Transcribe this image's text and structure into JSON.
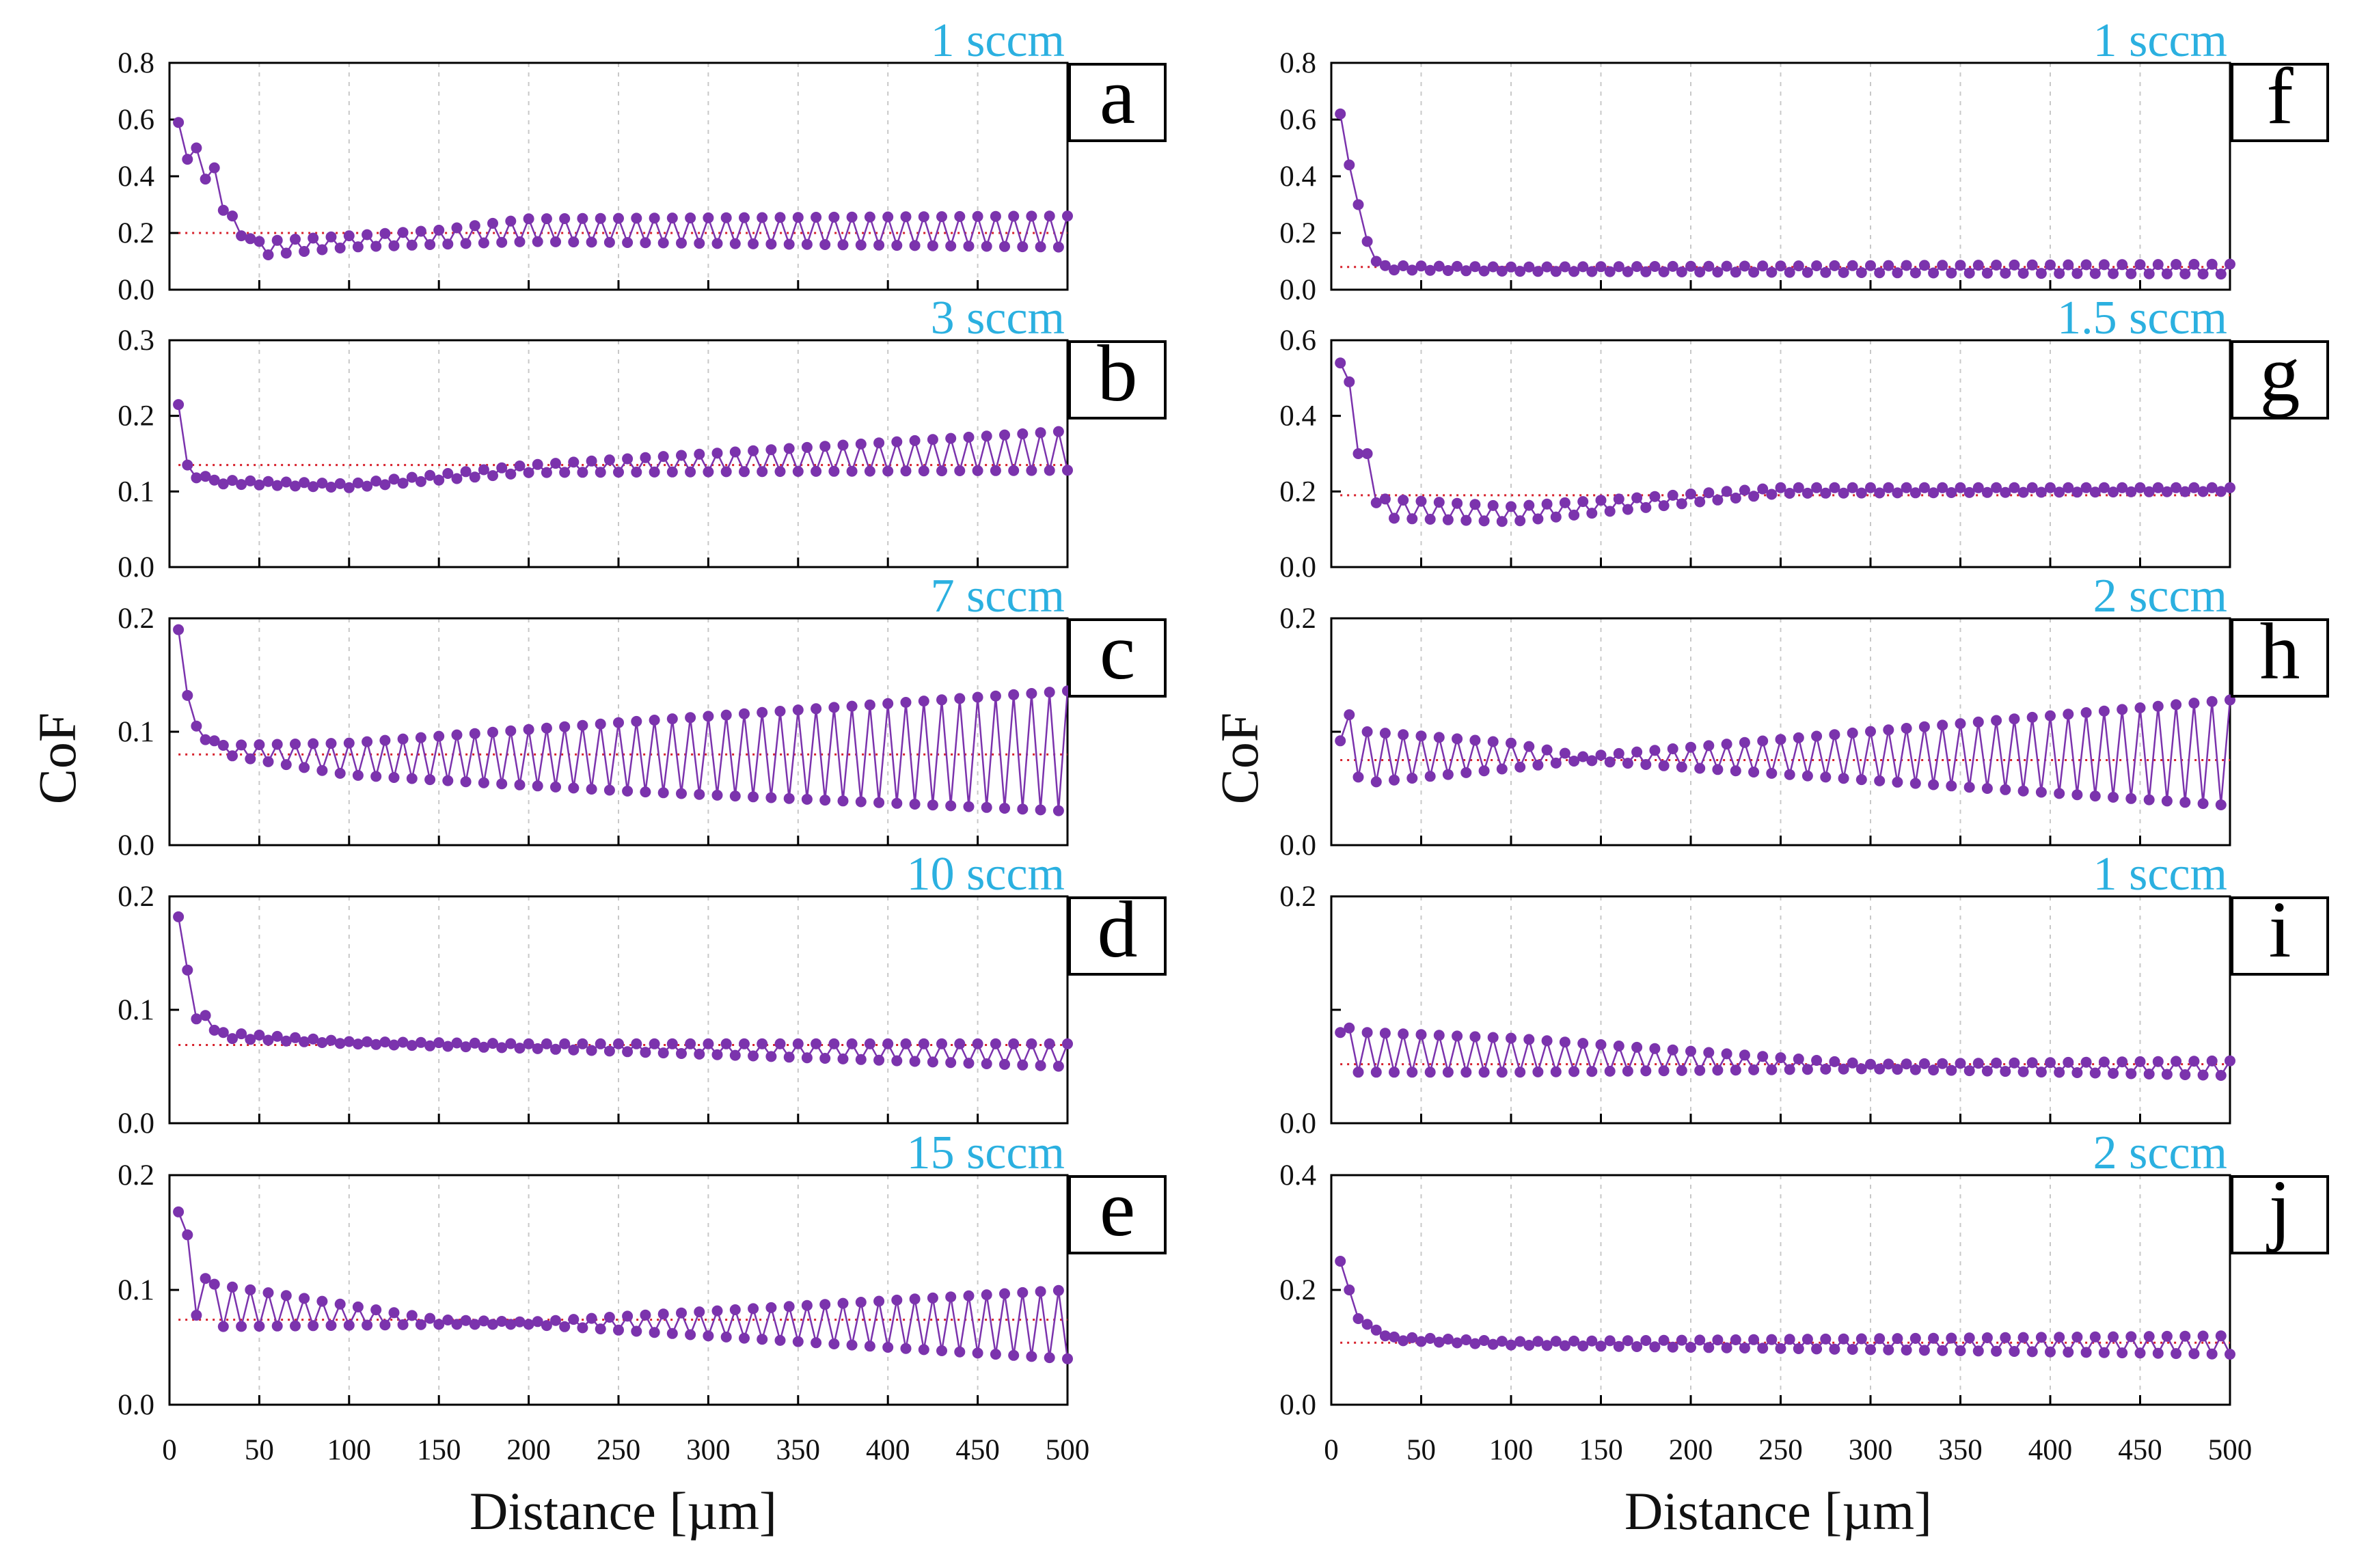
{
  "colors": {
    "series": "#7b33ad",
    "mean_line": "#d61f2a",
    "condition_label": "#2bb0e0",
    "grid": "#c8c8c8"
  },
  "shared": {
    "xlabel": "Distance [µm]",
    "ylabel": "CoF",
    "x_ticks": [
      "0",
      "50",
      "100",
      "150",
      "200",
      "250",
      "300",
      "350",
      "400",
      "450",
      "500"
    ]
  },
  "chart_data": [
    {
      "panel": "a",
      "condition": "1 sccm",
      "type": "line",
      "xlim": [
        0,
        500
      ],
      "ylim": [
        0,
        0.8
      ],
      "y_ticks": [
        "0.0",
        "0.2",
        "0.4",
        "0.6",
        "0.8"
      ],
      "mean": 0.2,
      "x": [
        5,
        10,
        15,
        20,
        25,
        30,
        35,
        40,
        45
      ],
      "y_start": [
        0.59,
        0.46,
        0.5,
        0.39,
        0.43,
        0.28,
        0.26,
        0.19,
        0.18
      ],
      "upper": [
        [
          50,
          0.17
        ],
        [
          150,
          0.21
        ],
        [
          200,
          0.25
        ],
        [
          500,
          0.26
        ]
      ],
      "lower": [
        [
          50,
          0.12
        ],
        [
          100,
          0.15
        ],
        [
          200,
          0.17
        ],
        [
          500,
          0.15
        ]
      ]
    },
    {
      "panel": "b",
      "condition": "3 sccm",
      "type": "line",
      "xlim": [
        0,
        500
      ],
      "ylim": [
        0,
        0.3
      ],
      "y_ticks": [
        "0.0",
        "0.1",
        "0.2",
        "0.3"
      ],
      "mean": 0.135,
      "x": [
        5,
        10,
        15,
        20
      ],
      "y_start": [
        0.215,
        0.135,
        0.118,
        0.12
      ],
      "upper": [
        [
          30,
          0.115
        ],
        [
          100,
          0.11
        ],
        [
          200,
          0.135
        ],
        [
          500,
          0.18
        ]
      ],
      "lower": [
        [
          30,
          0.11
        ],
        [
          100,
          0.105
        ],
        [
          200,
          0.125
        ],
        [
          500,
          0.128
        ]
      ]
    },
    {
      "panel": "c",
      "condition": "7 sccm",
      "type": "line",
      "xlim": [
        0,
        500
      ],
      "ylim": [
        0,
        0.2
      ],
      "y_ticks": [
        "0.0",
        "0.1",
        "0.2"
      ],
      "mean": 0.08,
      "x": [
        5,
        10,
        15,
        20,
        25
      ],
      "y_start": [
        0.19,
        0.132,
        0.105,
        0.093,
        0.092
      ],
      "upper": [
        [
          30,
          0.088
        ],
        [
          100,
          0.09
        ],
        [
          250,
          0.108
        ],
        [
          500,
          0.136
        ]
      ],
      "lower": [
        [
          30,
          0.08
        ],
        [
          100,
          0.062
        ],
        [
          250,
          0.048
        ],
        [
          500,
          0.03
        ]
      ]
    },
    {
      "panel": "d",
      "condition": "10 sccm",
      "type": "line",
      "xlim": [
        0,
        500
      ],
      "ylim": [
        0,
        0.2
      ],
      "y_ticks": [
        "0.0",
        "0.1",
        "0.2"
      ],
      "mean": 0.069,
      "x": [
        5,
        10,
        15,
        20,
        25
      ],
      "y_start": [
        0.182,
        0.135,
        0.092,
        0.095,
        0.082
      ],
      "upper": [
        [
          30,
          0.08
        ],
        [
          100,
          0.072
        ],
        [
          200,
          0.07
        ],
        [
          500,
          0.07
        ]
      ],
      "lower": [
        [
          30,
          0.075
        ],
        [
          100,
          0.07
        ],
        [
          200,
          0.066
        ],
        [
          500,
          0.05
        ]
      ]
    },
    {
      "panel": "e",
      "condition": "15 sccm",
      "type": "line",
      "xlim": [
        0,
        500
      ],
      "ylim": [
        0,
        0.2
      ],
      "y_ticks": [
        "0.0",
        "0.1",
        "0.2"
      ],
      "mean": 0.074,
      "x": [
        5,
        10,
        15,
        20
      ],
      "y_start": [
        0.168,
        0.148,
        0.078,
        0.11
      ],
      "upper": [
        [
          25,
          0.105
        ],
        [
          150,
          0.074
        ],
        [
          200,
          0.072
        ],
        [
          500,
          0.1
        ]
      ],
      "lower": [
        [
          25,
          0.068
        ],
        [
          150,
          0.07
        ],
        [
          200,
          0.07
        ],
        [
          500,
          0.04
        ]
      ]
    },
    {
      "panel": "f",
      "condition": "1 sccm",
      "type": "line",
      "xlim": [
        0,
        500
      ],
      "ylim": [
        0,
        0.8
      ],
      "y_ticks": [
        "0.0",
        "0.2",
        "0.4",
        "0.6",
        "0.8"
      ],
      "mean": 0.08,
      "x": [
        5,
        10,
        15,
        20,
        25
      ],
      "y_start": [
        0.62,
        0.44,
        0.3,
        0.17,
        0.1
      ],
      "upper": [
        [
          30,
          0.085
        ],
        [
          100,
          0.08
        ],
        [
          500,
          0.09
        ]
      ],
      "lower": [
        [
          30,
          0.07
        ],
        [
          100,
          0.065
        ],
        [
          500,
          0.055
        ]
      ]
    },
    {
      "panel": "g",
      "condition": "1.5 sccm",
      "type": "line",
      "xlim": [
        0,
        500
      ],
      "ylim": [
        0,
        0.6
      ],
      "y_ticks": [
        "0.0",
        "0.2",
        "0.4",
        "0.6"
      ],
      "mean": 0.19,
      "x": [
        5,
        10,
        15,
        20,
        25
      ],
      "y_start": [
        0.54,
        0.49,
        0.3,
        0.3,
        0.17
      ],
      "upper": [
        [
          30,
          0.18
        ],
        [
          100,
          0.16
        ],
        [
          250,
          0.21
        ],
        [
          500,
          0.21
        ]
      ],
      "lower": [
        [
          30,
          0.13
        ],
        [
          100,
          0.12
        ],
        [
          250,
          0.195
        ],
        [
          500,
          0.2
        ]
      ]
    },
    {
      "panel": "h",
      "condition": "2 sccm",
      "type": "line",
      "xlim": [
        0,
        500
      ],
      "ylim": [
        0,
        0.2
      ],
      "y_ticks": [
        "0.0",
        "",
        "0.2"
      ],
      "mean": 0.075,
      "x": [
        5,
        10,
        15
      ],
      "y_start": [
        0.092,
        0.115,
        0.06
      ],
      "upper": [
        [
          20,
          0.1
        ],
        [
          100,
          0.09
        ],
        [
          140,
          0.078
        ],
        [
          500,
          0.128
        ]
      ],
      "lower": [
        [
          20,
          0.055
        ],
        [
          100,
          0.068
        ],
        [
          140,
          0.075
        ],
        [
          500,
          0.035
        ]
      ]
    },
    {
      "panel": "i",
      "condition": "1 sccm",
      "type": "line",
      "xlim": [
        0,
        500
      ],
      "ylim": [
        0,
        0.2
      ],
      "y_ticks": [
        "0.0",
        "",
        "0.2"
      ],
      "mean": 0.052,
      "x": [
        5,
        10,
        15
      ],
      "y_start": [
        0.08,
        0.084,
        0.045
      ],
      "upper": [
        [
          20,
          0.08
        ],
        [
          100,
          0.075
        ],
        [
          300,
          0.052
        ],
        [
          500,
          0.055
        ]
      ],
      "lower": [
        [
          20,
          0.045
        ],
        [
          100,
          0.045
        ],
        [
          300,
          0.048
        ],
        [
          500,
          0.042
        ]
      ]
    },
    {
      "panel": "j",
      "condition": "2 sccm",
      "type": "line",
      "xlim": [
        0,
        500
      ],
      "ylim": [
        0,
        0.4
      ],
      "y_ticks": [
        "0.0",
        "0.2",
        "0.4"
      ],
      "mean": 0.108,
      "x": [
        5,
        10,
        15,
        20,
        25,
        30
      ],
      "y_start": [
        0.25,
        0.2,
        0.15,
        0.14,
        0.13,
        0.12
      ],
      "upper": [
        [
          35,
          0.118
        ],
        [
          100,
          0.11
        ],
        [
          500,
          0.12
        ]
      ],
      "lower": [
        [
          35,
          0.112
        ],
        [
          100,
          0.104
        ],
        [
          500,
          0.088
        ]
      ]
    }
  ]
}
